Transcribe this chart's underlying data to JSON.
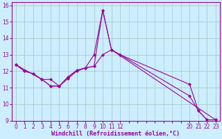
{
  "xlabel": "Windchill (Refroidissement éolien,°C)",
  "background_color": "#cceeff",
  "line_color": "#990099",
  "markersize": 2.5,
  "linewidth": 0.8,
  "xlim": [
    -0.5,
    23.5
  ],
  "ylim": [
    9,
    16.2
  ],
  "yticks": [
    9,
    10,
    11,
    12,
    13,
    14,
    15,
    16
  ],
  "xticks": [
    0,
    1,
    2,
    3,
    4,
    5,
    6,
    7,
    8,
    9,
    10,
    11,
    12,
    20,
    21,
    22,
    23
  ],
  "grid_color": "#aacccc",
  "series1": [
    [
      0,
      12.4
    ],
    [
      1,
      12.0
    ],
    [
      2,
      11.85
    ],
    [
      3,
      11.5
    ],
    [
      4,
      11.1
    ],
    [
      5,
      11.1
    ],
    [
      6,
      11.65
    ],
    [
      7,
      12.05
    ],
    [
      8,
      12.2
    ],
    [
      9,
      13.0
    ],
    [
      10,
      15.7
    ],
    [
      11,
      13.3
    ],
    [
      12,
      13.0
    ],
    [
      20,
      10.5
    ],
    [
      21,
      9.6
    ],
    [
      22,
      9.05
    ],
    [
      23,
      9.05
    ]
  ],
  "series2": [
    [
      0,
      12.4
    ],
    [
      1,
      12.0
    ],
    [
      2,
      11.85
    ],
    [
      3,
      11.5
    ],
    [
      4,
      11.5
    ],
    [
      5,
      11.1
    ],
    [
      6,
      11.55
    ],
    [
      7,
      12.0
    ],
    [
      8,
      12.2
    ],
    [
      9,
      12.3
    ],
    [
      10,
      15.7
    ],
    [
      11,
      13.3
    ],
    [
      23,
      9.05
    ]
  ],
  "series3": [
    [
      0,
      12.4
    ],
    [
      3,
      11.5
    ],
    [
      4,
      11.1
    ],
    [
      5,
      11.1
    ],
    [
      6,
      11.65
    ],
    [
      7,
      12.05
    ],
    [
      8,
      12.2
    ],
    [
      9,
      12.3
    ],
    [
      10,
      13.0
    ],
    [
      11,
      13.3
    ],
    [
      12,
      13.0
    ],
    [
      20,
      11.2
    ],
    [
      21,
      9.6
    ],
    [
      22,
      9.05
    ],
    [
      23,
      9.05
    ]
  ]
}
